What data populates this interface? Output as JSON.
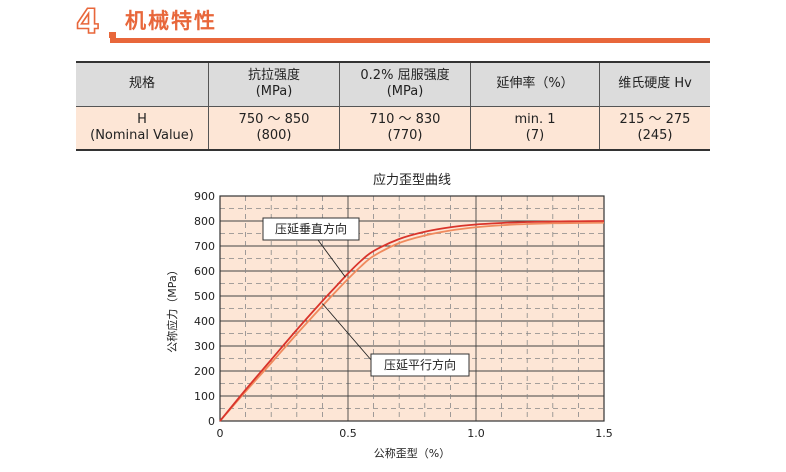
{
  "section": {
    "number": "4",
    "title": "机械特性",
    "accent_color": "#e8673b"
  },
  "table": {
    "headers": [
      [
        "规格"
      ],
      [
        "抗拉强度",
        "(MPa)"
      ],
      [
        "0.2% 屈服强度",
        "(MPa)"
      ],
      [
        "延伸率（%）"
      ],
      [
        "维氏硬度 Hv"
      ]
    ],
    "row": [
      [
        "H",
        "(Nominal Value)"
      ],
      [
        "750 ～ 850",
        "(800)"
      ],
      [
        "710 ～ 830",
        "(770)"
      ],
      [
        "min. 1",
        "(7)"
      ],
      [
        "215 ～ 275",
        "(245)"
      ]
    ],
    "header_bg": "#dcdcdc",
    "row_bg": "#fde6d6"
  },
  "chart_data": {
    "type": "line",
    "title": "应力歪型曲线",
    "xlabel": "公称歪型（%）",
    "ylabel": "公称应力（MPa）",
    "xlim": [
      0,
      1.5
    ],
    "ylim": [
      0,
      900
    ],
    "x_ticks": [
      "0",
      "0.5",
      "1.0",
      "1.5"
    ],
    "y_ticks": [
      "0",
      "100",
      "200",
      "300",
      "400",
      "500",
      "600",
      "700",
      "800",
      "900"
    ],
    "grid": true,
    "background_color": "#fde6d6",
    "series": [
      {
        "name": "压延垂直方向",
        "color": "#d9342b",
        "x": [
          0,
          0.1,
          0.2,
          0.3,
          0.4,
          0.45,
          0.5,
          0.55,
          0.6,
          0.7,
          0.8,
          0.9,
          1.0,
          1.1,
          1.2,
          1.3,
          1.4,
          1.5
        ],
        "y": [
          0,
          125,
          245,
          365,
          480,
          535,
          590,
          640,
          680,
          728,
          757,
          775,
          786,
          792,
          796,
          798,
          799,
          800
        ]
      },
      {
        "name": "压延平行方向",
        "color": "#f08a5d",
        "x": [
          0,
          0.1,
          0.2,
          0.3,
          0.4,
          0.45,
          0.5,
          0.55,
          0.6,
          0.7,
          0.8,
          0.9,
          1.0,
          1.1,
          1.2,
          1.3,
          1.4,
          1.5
        ],
        "y": [
          0,
          118,
          232,
          348,
          460,
          515,
          568,
          618,
          660,
          712,
          742,
          762,
          775,
          783,
          788,
          791,
          792,
          793
        ]
      }
    ],
    "annotations": [
      {
        "text": "压延垂直方向",
        "series": 0
      },
      {
        "text": "压延平行方向",
        "series": 1
      }
    ]
  }
}
